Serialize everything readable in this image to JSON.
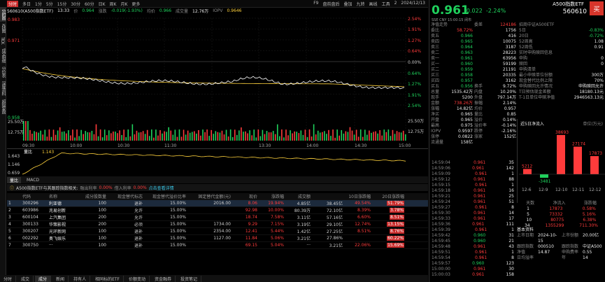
{
  "toolbar": {
    "tabs": [
      "分时",
      "多日",
      "1分",
      "5分",
      "15分",
      "30分",
      "60分",
      "日K",
      "周K",
      "月K",
      "更多"
    ],
    "right": [
      "F9",
      "盘前盘后",
      "叠加",
      "九转",
      "画线",
      "工具",
      "2"
    ],
    "date": "2024/12/13"
  },
  "vstrip": [
    "分时图",
    "K线图",
    "TICK",
    "成交明细",
    "分价表",
    "深度资料",
    "超级复盘"
  ],
  "infobar": {
    "name": "560610(A500指数ETF)",
    "time": "13:33",
    "price_label": "价",
    "price": "0.964",
    "change_label": "涨跌",
    "change": "-0.019(-1.93%)",
    "avg_label": "均价",
    "avg": "0.966",
    "vol_label": "成交量",
    "vol": "12.76万",
    "iopv_label": "IOPV",
    "iopv": "0.9646"
  },
  "chart_labels": {
    "left": [
      "0.983",
      "0.971",
      "0.958",
      "25.50万",
      "12.75万"
    ],
    "right": [
      "2.54%",
      "1.91%",
      "1.27%",
      "0.64%",
      "0.00%",
      "0.64%",
      "1.27%",
      "1.91%",
      "2.54%",
      "25.50万",
      "12.75万"
    ],
    "times": [
      "09:30",
      "10:00",
      "10:30",
      "11:30",
      "13:30",
      "14:00",
      "14:30",
      "15:00"
    ],
    "sub_title": "量比",
    "sub_value": "1.143",
    "sub_left": [
      "1.643",
      "1.146",
      "0.659"
    ]
  },
  "subtabs": [
    "量比",
    "MACD"
  ],
  "notice": {
    "text": "A500指数ETF与其跟踪指数相关:",
    "items": [
      "融出利率",
      "0.00%",
      "借入利率",
      "0.00%",
      "点击查看详情"
    ]
  },
  "table": {
    "headers": [
      "",
      "代码",
      "名称",
      "成分股数量",
      "现金替代标志",
      "现金替代溢价比率",
      "固定替代金额(元)",
      "现价",
      "涨跌幅",
      "成交额",
      "10日涨跌幅",
      "20日涨跌幅"
    ],
    "rows": [
      [
        "1",
        "300296",
        "利亚德",
        "100",
        "退补",
        "15.00%",
        "2016.00",
        "8.06",
        "19.94%",
        "4.85亿",
        "38.45亿",
        "49.54%",
        "51.79%"
      ],
      [
        "2",
        "603986",
        "兆易创新",
        "100",
        "允许",
        "15.00%",
        "",
        "92.98",
        "10.00%",
        "80.39万",
        "72.10亿",
        "8.39%",
        "3.78%"
      ],
      [
        "3",
        "600104",
        "上汽集团",
        "200",
        "允许",
        "15.00%",
        "",
        "18.74",
        "7.58%",
        "3.11亿",
        "57.16亿",
        "6.60%",
        "8.51%"
      ],
      [
        "4",
        "300133",
        "华策影视",
        "200",
        "必须",
        "15.00%",
        "1734.00",
        "9.29",
        "7.15%",
        "3.19亿",
        "29.10亿",
        "12.74%",
        "13.15%"
      ],
      [
        "5",
        "300207",
        "光环新网",
        "100",
        "退补",
        "15.00%",
        "2354.00",
        "12.41",
        "5.44%",
        "1.42亿",
        "27.25亿",
        "8.51%",
        "8.76%"
      ],
      [
        "6",
        "002292",
        "奥飞娱乐",
        "100",
        "退补",
        "15.00%",
        "1127.00",
        "11.84",
        "5.06%",
        "3.21亿",
        "27.86%",
        "",
        "60.22%"
      ],
      [
        "7",
        "300750",
        "···",
        "100",
        "退补",
        "15.00%",
        "",
        "69.15",
        "5.04%",
        "···",
        "3.21亿",
        "22.06%",
        "15.69%"
      ]
    ]
  },
  "bottomtabs": [
    "分时",
    "成交",
    "成分",
    "新闻",
    "持有人",
    "相同标的ETF",
    "价额变动",
    "资金融券",
    "投资笔记"
  ],
  "right": {
    "title": "A500指数ETF",
    "code": "560610",
    "buy_label": "买",
    "price": "0.961",
    "change": "-0.022",
    "pct": "-2.24%",
    "meta": "SSE  CNY  15:00:15 闭市",
    "quote_left": [
      [
        "净值走势",
        ""
      ],
      [
        "委比",
        "58.72%"
      ],
      [
        "卖五",
        "0.966"
      ],
      [
        "卖四",
        "0.965"
      ],
      [
        "卖三",
        "0.964"
      ],
      [
        "卖二",
        "0.963"
      ],
      [
        "卖一",
        "0.961"
      ],
      [
        "买一",
        "0.960"
      ],
      [
        "买二",
        "0.959"
      ],
      [
        "买三",
        "0.958"
      ],
      [
        "买四",
        "0.957"
      ],
      [
        "买五",
        "0.956"
      ],
      [
        "总量",
        "1535.42万"
      ],
      [
        "现手",
        "5200"
      ],
      [
        "金额",
        "738.26万"
      ],
      [
        "涨幅",
        "14.82亿"
      ],
      [
        "净买",
        "0.965"
      ],
      [
        "开盘",
        "0.965"
      ],
      [
        "最高",
        "0.975"
      ],
      [
        "IOPV",
        "0.9597"
      ],
      [
        "涨停",
        "0.0822"
      ],
      [
        "流通量",
        "158亿"
      ]
    ],
    "quote_mid": [
      [
        "",
        ""
      ],
      [
        "委差",
        "124186"
      ],
      [
        "",
        "1756"
      ],
      [
        "",
        "416"
      ],
      [
        "",
        "10075"
      ],
      [
        "",
        "3187"
      ],
      [
        "",
        "28223"
      ],
      [
        "",
        "63956"
      ],
      [
        "",
        "59199"
      ],
      [
        "",
        "21191"
      ],
      [
        "",
        "20335"
      ],
      [
        "",
        "3162"
      ],
      [
        "换手",
        "9.72%"
      ],
      [
        "内盘",
        "10.20%"
      ],
      [
        "外盘",
        "797.14万"
      ],
      [
        "振幅",
        "2.14%"
      ],
      [
        "均价",
        "0.957"
      ],
      [
        "量比",
        "0.85"
      ],
      [
        "溢价",
        "0.14%"
      ],
      [
        "溢价率",
        "-0.14%"
      ],
      [
        "跌停",
        "-2.16%"
      ],
      [
        "涨家",
        "152亿"
      ]
    ],
    "fund_info": [
      [
        "招商中证A500ETF",
        ""
      ],
      [
        "5日",
        "-0.83%"
      ],
      [
        "20日",
        "-0.72%"
      ],
      [
        "52周高",
        "1.08"
      ],
      [
        "52周低",
        "0.91"
      ],
      [
        "实时申购赎回信息",
        ""
      ],
      [
        "申购",
        "0"
      ],
      [
        "赎回",
        "0"
      ],
      [
        "申购清单",
        ""
      ],
      [
        "最小申赎单位份额",
        "300万"
      ],
      [
        "现金替代比例上限",
        "70%"
      ],
      [
        "申购赎回允许情况",
        "申购赎回允许"
      ],
      [
        "T日预估现金差额",
        "18180.13元"
      ],
      [
        "T-1日单位申赎净值",
        "2946563.13元"
      ]
    ],
    "flow": {
      "title": "近5日净流入",
      "unit": "单位(万元)",
      "dates": [
        "12-6",
        "12-9",
        "12-10",
        "12-11",
        "12-12"
      ],
      "values": [
        5212,
        -3481,
        38693,
        27174,
        17873
      ]
    },
    "flow_table": {
      "headers": [
        "天数",
        "净流入",
        "涨跌幅"
      ],
      "rows": [
        [
          "1",
          "17873",
          "0.58%"
        ],
        [
          "5",
          "73332",
          "5.16%"
        ],
        [
          "10",
          "80775",
          "6.38%"
        ],
        [
          "34",
          "1355299",
          "711.30%"
        ]
      ]
    },
    "basic": {
      "title": "基本资料",
      "rows": [
        [
          "上市日期",
          "2024-10-15",
          "上市份额",
          "20.00亿"
        ],
        [
          "跟踪指数",
          "000510",
          "跟踪指数",
          "中证A500"
        ],
        [
          "净值",
          "14.87",
          "申购费率",
          "0.55"
        ],
        [
          "日均溢率",
          "",
          "年",
          "14"
        ]
      ]
    },
    "trades": [
      [
        "14:59:04",
        "0.961",
        "35"
      ],
      [
        "14:59:06",
        "0.961",
        "142"
      ],
      [
        "14:59:09",
        "0.961",
        "1"
      ],
      [
        "14:59:12",
        "0.961",
        "88"
      ],
      [
        "14:59:15",
        "0.961",
        "1"
      ],
      [
        "14:59:18",
        "0.961",
        "16"
      ],
      [
        "14:59:21",
        "0.961",
        "25"
      ],
      [
        "14:59:24",
        "0.961",
        "51"
      ],
      [
        "14:59:27",
        "0.961",
        "8"
      ],
      [
        "14:59:30",
        "0.961",
        "14"
      ],
      [
        "14:59:33",
        "0.961",
        "17"
      ],
      [
        "14:59:36",
        "0.961",
        "111"
      ],
      [
        "14:59:39",
        "0.961",
        "1"
      ],
      [
        "14:59:42",
        "0.960",
        "31"
      ],
      [
        "14:59:45",
        "0.960",
        "21"
      ],
      [
        "14:59:48",
        "0.961",
        "43"
      ],
      [
        "14:59:51",
        "0.961",
        "1"
      ],
      [
        "14:59:54",
        "0.961",
        "8"
      ],
      [
        "14:59:57",
        "0.960",
        "123"
      ],
      [
        "15:00:00",
        "0.961",
        "30"
      ],
      [
        "15:00:03",
        "0.961",
        "158"
      ]
    ]
  },
  "colors": {
    "up": "#ff3b3b",
    "down": "#1fd15c",
    "price_line": "#ffffff",
    "avg_line": "#ffd23c"
  }
}
